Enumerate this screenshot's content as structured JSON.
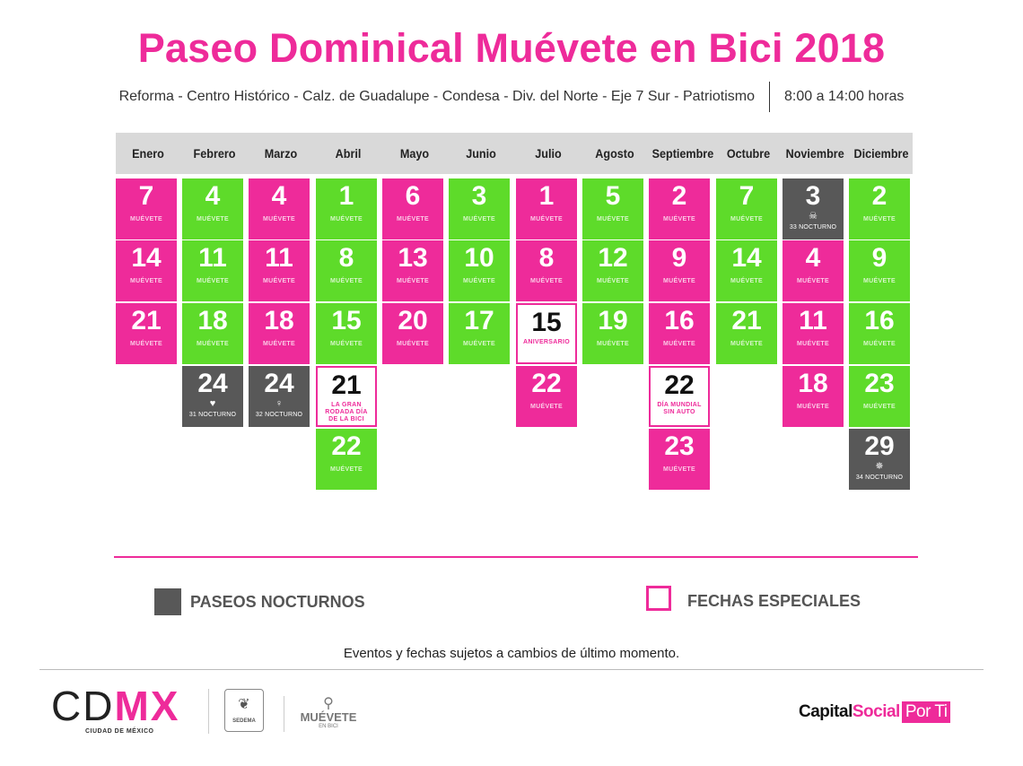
{
  "header": {
    "title": "Paseo Dominical Muévete en Bici 2018",
    "route": "Reforma - Centro Histórico - Calz. de Guadalupe - Condesa - Div. del Norte - Eje 7 Sur - Patriotismo",
    "hours": "8:00 a 14:00 horas"
  },
  "months": [
    "Enero",
    "Febrero",
    "Marzo",
    "Abril",
    "Mayo",
    "Junio",
    "Julio",
    "Agosto",
    "Septiembre",
    "Octubre",
    "Noviembre",
    "Diciembre"
  ],
  "brand_mark": "MUÉVETE",
  "calendar": [
    [
      {
        "day": "7",
        "type": "pink"
      },
      {
        "day": "14",
        "type": "pink"
      },
      {
        "day": "21",
        "type": "pink"
      }
    ],
    [
      {
        "day": "4",
        "type": "green"
      },
      {
        "day": "11",
        "type": "green"
      },
      {
        "day": "18",
        "type": "green"
      },
      {
        "day": "24",
        "type": "gray",
        "glyph": "♥",
        "note": "31 NOCTURNO"
      }
    ],
    [
      {
        "day": "4",
        "type": "pink"
      },
      {
        "day": "11",
        "type": "pink"
      },
      {
        "day": "18",
        "type": "pink"
      },
      {
        "day": "24",
        "type": "gray",
        "glyph": "♀",
        "note": "32 NOCTURNO"
      }
    ],
    [
      {
        "day": "1",
        "type": "green"
      },
      {
        "day": "8",
        "type": "green"
      },
      {
        "day": "15",
        "type": "green"
      },
      {
        "day": "21",
        "type": "special",
        "note": "LA GRAN RODADA DÍA DE LA BICI"
      },
      {
        "day": "22",
        "type": "green"
      }
    ],
    [
      {
        "day": "6",
        "type": "pink"
      },
      {
        "day": "13",
        "type": "pink"
      },
      {
        "day": "20",
        "type": "pink"
      }
    ],
    [
      {
        "day": "3",
        "type": "green"
      },
      {
        "day": "10",
        "type": "green"
      },
      {
        "day": "17",
        "type": "green"
      }
    ],
    [
      {
        "day": "1",
        "type": "pink"
      },
      {
        "day": "8",
        "type": "pink"
      },
      {
        "day": "15",
        "type": "special",
        "note": "ANIVERSARIO"
      },
      {
        "day": "22",
        "type": "pink"
      }
    ],
    [
      {
        "day": "5",
        "type": "green"
      },
      {
        "day": "12",
        "type": "green"
      },
      {
        "day": "19",
        "type": "green"
      }
    ],
    [
      {
        "day": "2",
        "type": "pink"
      },
      {
        "day": "9",
        "type": "pink"
      },
      {
        "day": "16",
        "type": "pink"
      },
      {
        "day": "22",
        "type": "special",
        "note": "DÍA MUNDIAL SIN AUTO"
      },
      {
        "day": "23",
        "type": "pink"
      }
    ],
    [
      {
        "day": "7",
        "type": "green"
      },
      {
        "day": "14",
        "type": "green"
      },
      {
        "day": "21",
        "type": "green"
      }
    ],
    [
      {
        "day": "3",
        "type": "gray",
        "glyph": "☠",
        "note": "33 NOCTURNO"
      },
      {
        "day": "4",
        "type": "pink"
      },
      {
        "day": "11",
        "type": "pink"
      },
      {
        "day": "18",
        "type": "pink"
      }
    ],
    [
      {
        "day": "2",
        "type": "green"
      },
      {
        "day": "9",
        "type": "green"
      },
      {
        "day": "16",
        "type": "green"
      },
      {
        "day": "23",
        "type": "green"
      },
      {
        "day": "29",
        "type": "gray",
        "glyph": "✵",
        "note": "34 NOCTURNO"
      }
    ]
  ],
  "legend": {
    "nocturnos": "PASEOS NOCTURNOS",
    "especiales": "FECHAS ESPECIALES"
  },
  "disclaimer": "Eventos y fechas sujetos a cambios de último momento.",
  "footer": {
    "cdmx_a": "CD",
    "cdmx_b": "MX",
    "cdmx_sub": "CIUDAD DE MÉXICO",
    "sedema": "SEDEMA",
    "muevete": "MUÉVETE",
    "muevete_sub": "EN BICI",
    "capital_a": "Capital",
    "capital_b": "Social",
    "capital_c": "Por Ti"
  },
  "colors": {
    "pink": "#ee2b9a",
    "green": "#5edb2a",
    "gray": "#585858"
  }
}
